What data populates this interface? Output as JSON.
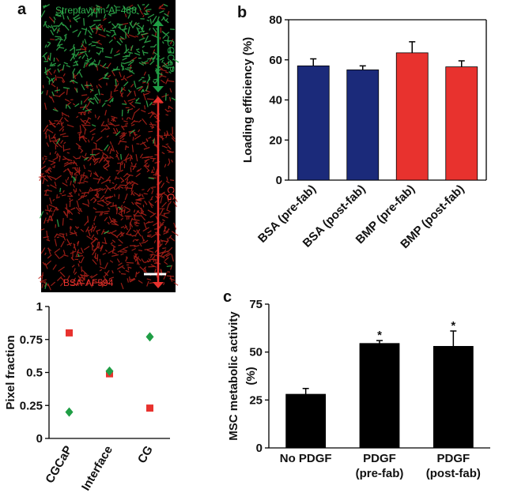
{
  "panel_labels": [
    "a",
    "b",
    "c"
  ],
  "image": {
    "top_label": "Streptavidin-AF488",
    "bottom_label": "BSA-AF594",
    "regions": [
      {
        "label": "CGCaP",
        "color": "#1f9e45"
      },
      {
        "label": "CG",
        "color": "#e8322e"
      }
    ]
  },
  "chart_data": [
    {
      "type": "scatter",
      "ylabel": "Pixel fraction",
      "categories": [
        "CGCaP",
        "Interface",
        "CG"
      ],
      "series": [
        {
          "color": "#e8322e",
          "marker": "square",
          "values": [
            0.8,
            0.49,
            0.23
          ]
        },
        {
          "color": "#1f9e45",
          "marker": "diamond",
          "values": [
            0.2,
            0.51,
            0.77
          ]
        }
      ],
      "ylim": [
        0,
        1
      ],
      "yticks": [
        0,
        0.25,
        0.5,
        0.75,
        1
      ]
    },
    {
      "type": "bar",
      "ylabel": "Loading efficiency (%)",
      "categories": [
        "BSA (pre-fab)",
        "BSA (post-fab)",
        "BMP (pre-fab)",
        "BMP (post-fab)"
      ],
      "values": [
        57,
        55,
        63.5,
        56.5
      ],
      "errors": [
        3.5,
        2,
        5.5,
        3
      ],
      "colors": [
        "#1b2a7a",
        "#1b2a7a",
        "#e8322e",
        "#e8322e"
      ],
      "ylim": [
        0,
        80
      ],
      "yticks": [
        0,
        20,
        40,
        60,
        80
      ]
    },
    {
      "type": "bar",
      "ylabel": [
        "MSC metabolic activity",
        "(%)"
      ],
      "categories": [
        [
          "No PDGF"
        ],
        [
          "PDGF",
          "(pre-fab)"
        ],
        [
          "PDGF",
          "(post-fab)"
        ]
      ],
      "values": [
        28,
        54.5,
        53
      ],
      "errors": [
        3,
        1.5,
        8
      ],
      "colors": [
        "#000000",
        "#000000",
        "#000000"
      ],
      "annotations": [
        null,
        "*",
        "*"
      ],
      "ylim": [
        0,
        75
      ],
      "yticks": [
        0,
        25,
        50,
        75
      ]
    }
  ]
}
